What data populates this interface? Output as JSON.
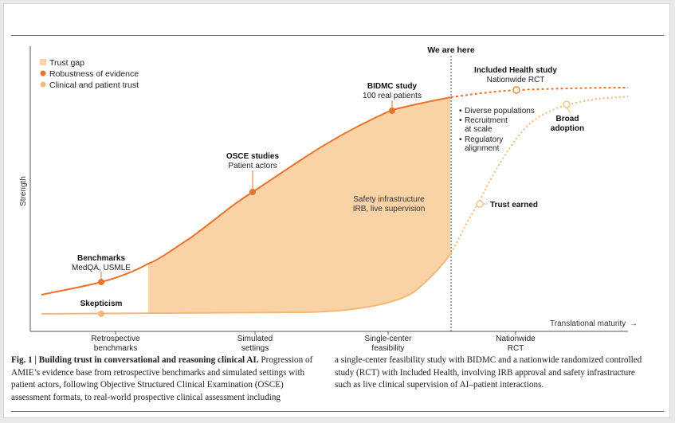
{
  "legend": [
    {
      "label": "Trust gap",
      "color": "#f9d3a6",
      "shape": "square"
    },
    {
      "label": "Robustness of evidence",
      "color": "#e8732a",
      "shape": "circle"
    },
    {
      "label": "Clinical and patient trust",
      "color": "#f4b87a",
      "shape": "circle"
    }
  ],
  "axes": {
    "y_label": "Strength",
    "x_label": "Translational maturity",
    "x_arrow": "→",
    "stages": [
      {
        "line1": "Retrospective",
        "line2": "benchmarks"
      },
      {
        "line1": "Simulated",
        "line2": "settings"
      },
      {
        "line1": "Single-center",
        "line2": "feasibility"
      },
      {
        "line1": "Nationwide",
        "line2": "RCT"
      }
    ]
  },
  "we_are_here": "We are here",
  "annotations": {
    "benchmarks": {
      "title": "Benchmarks",
      "sub": "MedQA, USMLE"
    },
    "skepticism": {
      "title": "Skepticism"
    },
    "osce": {
      "title": "OSCE studies",
      "sub": "Patient actors"
    },
    "bidmc": {
      "title": "BIDMC study",
      "sub": "100 real patients"
    },
    "included_health": {
      "title": "Included Health study",
      "sub": "Nationwide RCT"
    },
    "safety": {
      "line1": "Safety infrastructure",
      "line2": "IRB, live supervision"
    },
    "trust_earned": {
      "title": "Trust earned"
    },
    "broad_adoption": {
      "line1": "Broad",
      "line2": "adoption"
    },
    "bullets": [
      {
        "line1": "Diverse populations"
      },
      {
        "line1": "Recruitment",
        "line2": "at scale"
      },
      {
        "line1": "Regulatory",
        "line2": "alignment"
      }
    ]
  },
  "caption": {
    "fig_label": "Fig. 1 | Building trust in conversational and reasoning clinical AI.",
    "left_text": " Progression of AMIE’s evidence base from retrospective benchmarks and simulated settings with patient actors, following Objective Structured Clinical Examination (OSCE) assessment formats, to real-world prospective clinical assessment including",
    "right_text": "a single-center feasibility study with BIDMC and a nationwide randomized controlled study (RCT) with Included Health, involving IRB approval and safety infrastructure such as live clinical supervision of AI–patient interactions."
  },
  "colors": {
    "evidence": "#e8732a",
    "trust": "#f4b87a",
    "gap": "#f9d3a6",
    "axis": "#555555"
  }
}
